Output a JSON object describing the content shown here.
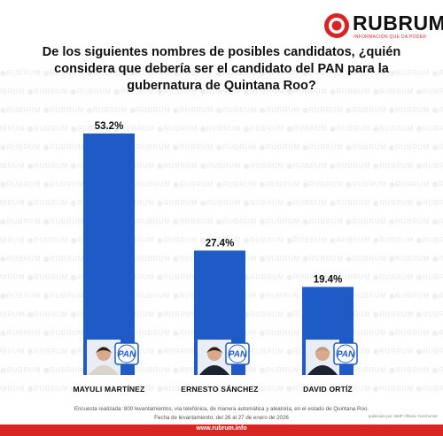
{
  "brand": {
    "name": "RUBRUM",
    "tagline": "INFORMACIÓN QUE DA PODER",
    "watermark": "RUBRUM",
    "red": "#d92424"
  },
  "title": "De los siguientes nombres de posibles candidatos, ¿quién considera que debería ser el candidato del PAN para la gubernatura de Quintana Roo?",
  "chart_data": {
    "type": "bar",
    "categories": [
      "MAYULI MARTÍNEZ",
      "ERNESTO SÁNCHEZ",
      "DAVID ORTÍZ"
    ],
    "values": [
      53.2,
      27.4,
      19.4
    ],
    "value_labels": [
      "53.2%",
      "27.4%",
      "19.4%"
    ],
    "ylim": [
      0,
      60
    ],
    "grid": false,
    "legend": "none",
    "bar_color": "#1f5bc6",
    "party_badge": "PAN",
    "title": "De los siguientes nombres de posibles candidatos, ¿quién considera que debería ser el candidato del PAN para la gubernatura de Quintana Roo?",
    "xlabel": "",
    "ylabel": ""
  },
  "notes": {
    "survey": "Encuesta realizada: 800 levantamientos, vía telefónica, de manera automática y aleatoria, en el estado de Quintana Roo.",
    "dates": "Fecha de levantamiento: del 26 al 27 de enero de 2026"
  },
  "footer": {
    "url": "www.rubrum.info",
    "credit": "publicado por: BMP Alfredo Yurichunter"
  }
}
